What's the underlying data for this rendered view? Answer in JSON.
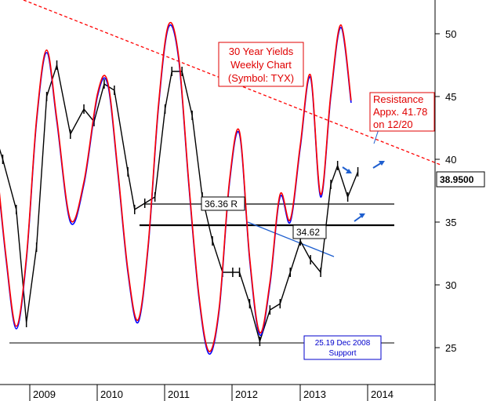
{
  "chart_data": {
    "type": "line",
    "title": "30 Year Yields Weekly Chart (Symbol: TYX)",
    "title_lines": [
      "30 Year Yields",
      "Weekly Chart",
      "(Symbol: TYX)"
    ],
    "x_tick_labels": [
      "2009",
      "2010",
      "2011",
      "2012",
      "2013",
      "2014"
    ],
    "y_tick_labels": [
      "25",
      "30",
      "35",
      "40",
      "45",
      "50"
    ],
    "ylim": [
      22.5,
      53
    ],
    "grid": false,
    "last_price": "38.9500",
    "annotations": {
      "resistance": [
        "Resistance",
        "Appx. 41.78",
        "on 12/20"
      ],
      "level_r": "36.36 R",
      "level_mid": "34.62",
      "support": [
        "25.19 Dec 2008",
        "Support"
      ]
    },
    "horizontal_levels": [
      {
        "label": "36.36 R",
        "value": 36.36
      },
      {
        "label": "34.62",
        "value": 34.62
      },
      {
        "label": "25.19 Dec 2008",
        "value": 25.19
      }
    ],
    "series": [
      {
        "style": "bars",
        "color": "#000000",
        "x": [
          2008.2,
          2008.4,
          2008.6,
          2008.8,
          2008.95,
          2009.1,
          2009.25,
          2009.4,
          2009.6,
          2009.8,
          2009.95,
          2010.1,
          2010.25,
          2010.45,
          2010.55,
          2010.7,
          2010.85,
          2011.0,
          2011.1,
          2011.25,
          2011.4,
          2011.55,
          2011.7,
          2011.85,
          2012.0,
          2012.1,
          2012.25,
          2012.4,
          2012.55,
          2012.7,
          2012.85,
          2013.0,
          2013.15,
          2013.3,
          2013.45,
          2013.55,
          2013.7,
          2013.85
        ],
        "values": [
          46.5,
          43.5,
          40,
          36,
          27,
          33,
          45,
          47.5,
          42,
          44,
          43,
          46,
          45.5,
          39,
          36,
          36.5,
          37,
          44,
          47,
          47,
          43.5,
          37,
          33.5,
          31,
          31,
          31,
          28.5,
          25.5,
          28,
          28.5,
          31,
          33.5,
          32,
          31,
          38,
          39.5,
          37,
          39
        ]
      },
      {
        "style": "line",
        "color": "#0000ff",
        "x": [
          2008.5,
          2008.65,
          2008.8,
          2008.95,
          2009.1,
          2009.25,
          2009.4,
          2009.6,
          2009.8,
          2010.0,
          2010.15,
          2010.3,
          2010.45,
          2010.6,
          2010.75,
          2010.9,
          2011.05,
          2011.2,
          2011.35,
          2011.5,
          2011.65,
          2011.8,
          2011.95,
          2012.1,
          2012.25,
          2012.4,
          2012.55,
          2012.7,
          2012.85,
          2013.0,
          2013.15,
          2013.3,
          2013.45,
          2013.6,
          2013.75
        ],
        "values": [
          40,
          32,
          26.5,
          32,
          43,
          48.5,
          43,
          35,
          38,
          45,
          46,
          39,
          31,
          27,
          33,
          44,
          50.5,
          48,
          38,
          29,
          24.5,
          28,
          38,
          42,
          32,
          26,
          30,
          37,
          35,
          41,
          46.5,
          37,
          45,
          50.5,
          44.5
        ]
      },
      {
        "style": "line",
        "color": "#ff0000",
        "x": [
          2008.5,
          2008.65,
          2008.8,
          2008.95,
          2009.1,
          2009.25,
          2009.4,
          2009.6,
          2009.8,
          2010.0,
          2010.15,
          2010.3,
          2010.45,
          2010.6,
          2010.75,
          2010.9,
          2011.05,
          2011.2,
          2011.35,
          2011.5,
          2011.65,
          2011.8,
          2011.95,
          2012.1,
          2012.25,
          2012.4,
          2012.55,
          2012.7,
          2012.85,
          2013.0,
          2013.15,
          2013.3,
          2013.45,
          2013.6,
          2013.75
        ],
        "values": [
          40.2,
          32.2,
          26.7,
          32.2,
          43.2,
          48.7,
          43.2,
          35.2,
          38.2,
          45.2,
          46.2,
          39.2,
          31.2,
          27.2,
          33.2,
          44.2,
          50.7,
          48.2,
          38.2,
          29.2,
          24.7,
          28.2,
          38.2,
          42.2,
          32.2,
          26.2,
          30.2,
          37.2,
          35.2,
          41.2,
          46.7,
          37.2,
          45.2,
          50.7,
          44.7
        ]
      }
    ]
  }
}
